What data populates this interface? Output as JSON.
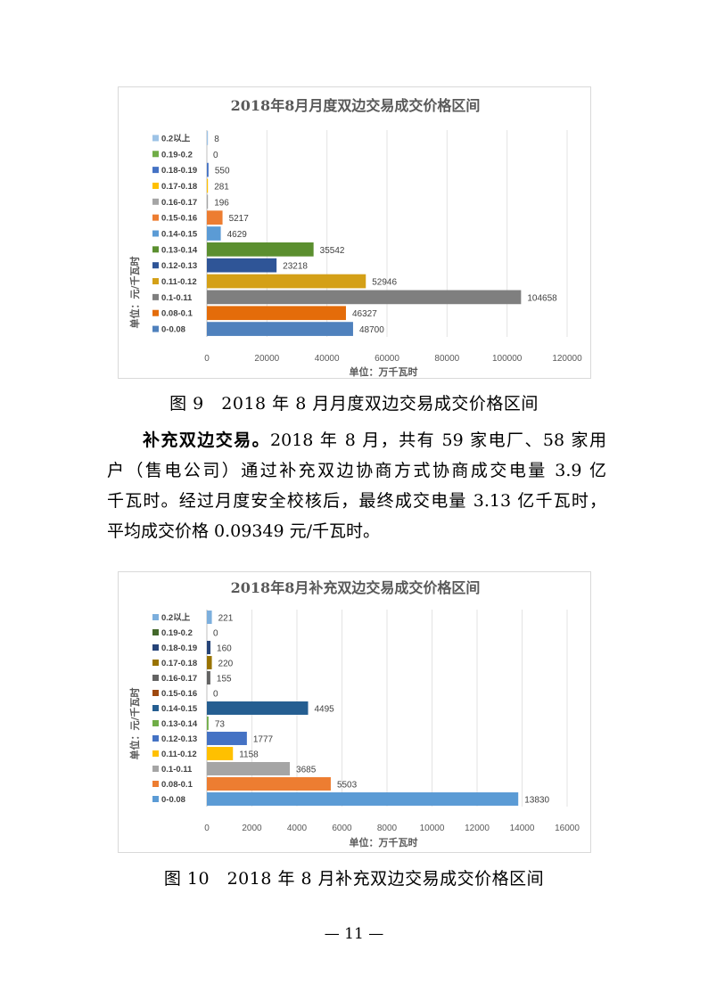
{
  "chart_data": [
    {
      "type": "bar",
      "orientation": "horizontal",
      "title": "2018年8月月度双边交易成交价格区间",
      "xlabel": "单位：万千瓦时",
      "ylabel": "单位：元/千瓦时",
      "categories": [
        "0-0.08",
        "0.08-0.1",
        "0.1-0.11",
        "0.11-0.12",
        "0.12-0.13",
        "0.13-0.14",
        "0.14-0.15",
        "0.15-0.16",
        "0.16-0.17",
        "0.17-0.18",
        "0.18-0.19",
        "0.19-0.2",
        "0.2以上"
      ],
      "values": [
        48700,
        46327,
        104658,
        52946,
        23218,
        35542,
        4629,
        5217,
        196,
        281,
        550,
        0,
        8
      ],
      "colors": [
        "#4f81bd",
        "#e46c0a",
        "#7f7f7f",
        "#d4a017",
        "#2f5597",
        "#5b8f2f",
        "#5b9bd5",
        "#ed7d31",
        "#a5a5a5",
        "#ffc000",
        "#4472c4",
        "#70ad47",
        "#9dc3e6"
      ],
      "xlim": [
        0,
        120000
      ],
      "xticks": [
        0,
        20000,
        40000,
        60000,
        80000,
        100000,
        120000
      ],
      "grid": true,
      "legend": "left"
    },
    {
      "type": "bar",
      "orientation": "horizontal",
      "title": "2018年8月补充双边交易成交价格区间",
      "xlabel": "单位：万千瓦时",
      "ylabel": "单位：元/千瓦时",
      "categories": [
        "0-0.08",
        "0.08-0.1",
        "0.1-0.11",
        "0.11-0.12",
        "0.12-0.13",
        "0.13-0.14",
        "0.14-0.15",
        "0.15-0.16",
        "0.16-0.17",
        "0.17-0.18",
        "0.18-0.19",
        "0.19-0.2",
        "0.2以上"
      ],
      "values": [
        13830,
        5503,
        3685,
        1158,
        1777,
        73,
        4495,
        0,
        155,
        220,
        160,
        0,
        221
      ],
      "colors": [
        "#5b9bd5",
        "#ed7d31",
        "#a5a5a5",
        "#ffc000",
        "#4472c4",
        "#70ad47",
        "#255e91",
        "#9e480e",
        "#636363",
        "#997300",
        "#264478",
        "#43682b",
        "#7cafdd"
      ],
      "xlim": [
        0,
        16000
      ],
      "xticks": [
        0,
        2000,
        4000,
        6000,
        8000,
        10000,
        12000,
        14000,
        16000
      ],
      "grid": true,
      "legend": "left"
    }
  ],
  "captions": {
    "fig9": "图 9　2018 年 8 月月度双边交易成交价格区间",
    "fig10": "图 10　2018 年 8 月补充双边交易成交价格区间"
  },
  "paragraph": {
    "lead": "补充双边交易。",
    "line1_rest": "2018 年 8 月，共有 59 家电厂、58 家用",
    "line2": "户（售电公司）通过补充双边协商方式协商成交电量 3.9 亿",
    "line3": "千瓦时。经过月度安全校核后，最终成交电量 3.13 亿千瓦时，",
    "line4": "平均成交价格 0.09349 元/千瓦时。"
  },
  "page_number": "— 11 —"
}
